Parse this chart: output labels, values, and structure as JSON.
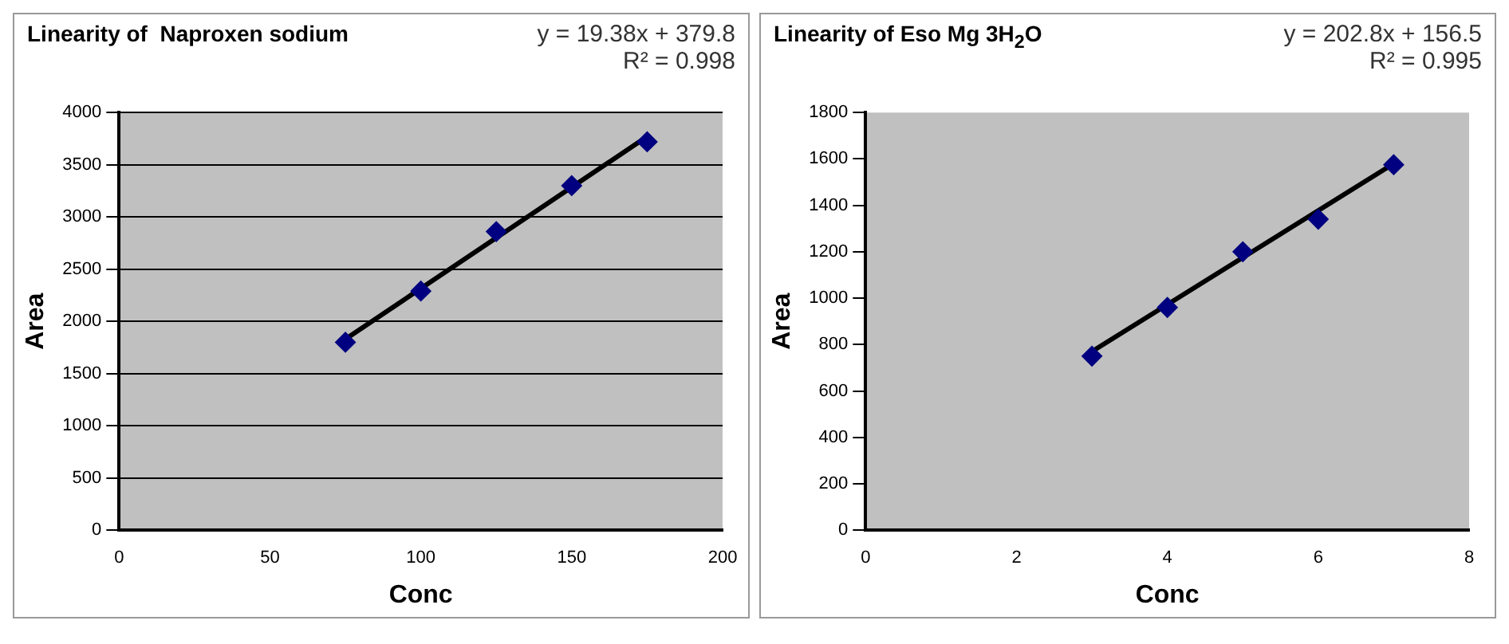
{
  "chart_data": [
    {
      "type": "scatter",
      "title": "Linearity of  Naproxen sodium",
      "annotations": [
        "y = 19.38x + 379.8",
        "R² = 0.998"
      ],
      "xlabel": "Conc",
      "ylabel": "Area",
      "xlim": [
        0,
        200
      ],
      "xticks": [
        0,
        50,
        100,
        150,
        200
      ],
      "ylim": [
        0,
        4000
      ],
      "yticks": [
        0,
        500,
        1000,
        1500,
        2000,
        2500,
        3000,
        3500,
        4000
      ],
      "grid": "y",
      "legend": false,
      "series": [
        {
          "type": "scatter",
          "color": "#000080",
          "marker": "diamond",
          "x": [
            75,
            100,
            125,
            150,
            175
          ],
          "values": [
            1800,
            2290,
            2860,
            3300,
            3720
          ]
        },
        {
          "type": "line",
          "color": "#000000",
          "marker": "none",
          "x": [
            75,
            175
          ],
          "values": [
            1830,
            3770
          ]
        }
      ]
    },
    {
      "type": "scatter",
      "title": "Linearity of Eso Mg 3H$_{2}$O",
      "annotations": [
        "y = 202.8x + 156.5",
        "R² = 0.995"
      ],
      "xlabel": "Conc",
      "ylabel": "Area",
      "xlim": [
        0,
        8
      ],
      "xticks": [
        0,
        2,
        4,
        6,
        8
      ],
      "ylim": [
        0,
        1800
      ],
      "yticks": [
        0,
        200,
        400,
        600,
        800,
        1000,
        1200,
        1400,
        1600,
        1800
      ],
      "grid": false,
      "legend": false,
      "series": [
        {
          "type": "scatter",
          "color": "#000080",
          "marker": "diamond",
          "x": [
            3,
            4,
            5,
            6,
            7
          ],
          "values": [
            750,
            960,
            1200,
            1340,
            1575
          ]
        },
        {
          "type": "line",
          "color": "#000000",
          "marker": "none",
          "x": [
            3,
            7
          ],
          "values": [
            770,
            1580
          ]
        }
      ]
    }
  ]
}
